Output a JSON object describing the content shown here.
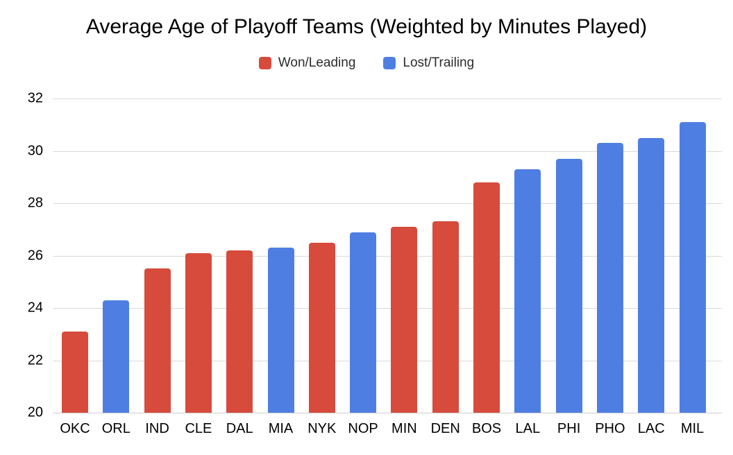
{
  "chart_data": {
    "type": "bar",
    "title": "Average Age of Playoff Teams (Weighted by Minutes Played)",
    "xlabel": "",
    "ylabel": "",
    "ylim": [
      20,
      32
    ],
    "yticks": [
      20,
      22,
      24,
      26,
      28,
      30,
      32
    ],
    "grid": true,
    "legend_position": "top-center",
    "legend": [
      {
        "label": "Won/Leading",
        "color": "#d64b3c"
      },
      {
        "label": "Lost/Trailing",
        "color": "#4f7ee3"
      }
    ],
    "categories": [
      "OKC",
      "ORL",
      "IND",
      "CLE",
      "DAL",
      "MIA",
      "NYK",
      "NOP",
      "MIN",
      "DEN",
      "BOS",
      "LAL",
      "PHI",
      "PHO",
      "LAC",
      "MIL"
    ],
    "values": [
      23.1,
      24.3,
      25.5,
      26.1,
      26.2,
      26.3,
      26.5,
      26.9,
      27.1,
      27.3,
      28.8,
      29.3,
      29.7,
      30.3,
      30.5,
      31.1
    ],
    "point_series": [
      "Won/Leading",
      "Lost/Trailing",
      "Won/Leading",
      "Won/Leading",
      "Won/Leading",
      "Lost/Trailing",
      "Won/Leading",
      "Lost/Trailing",
      "Won/Leading",
      "Won/Leading",
      "Won/Leading",
      "Lost/Trailing",
      "Lost/Trailing",
      "Lost/Trailing",
      "Lost/Trailing",
      "Lost/Trailing"
    ]
  },
  "colors": {
    "gridline": "#d9d9d9",
    "axis_line": "#cccccc",
    "text": "#000000"
  }
}
